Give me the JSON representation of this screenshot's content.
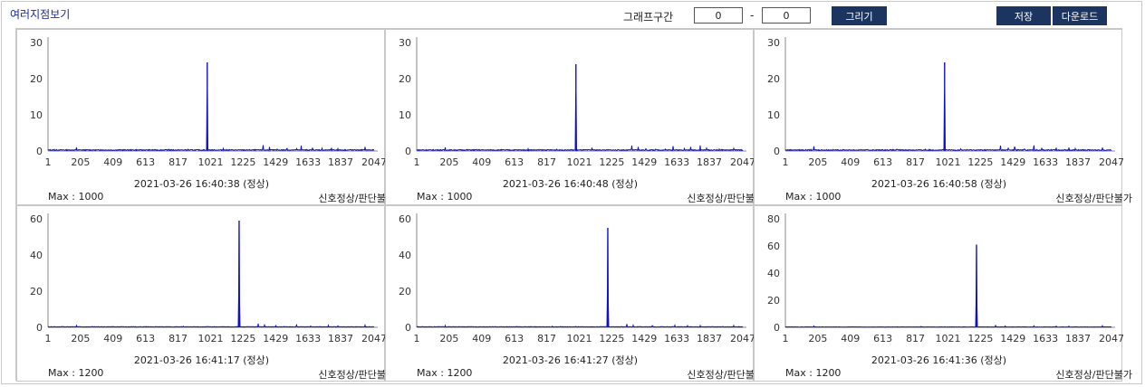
{
  "header": {
    "title": "여러지점보기",
    "range_label": "그래프구간",
    "range_from": "0",
    "range_sep": "-",
    "range_to": "0",
    "draw_button": "그리기",
    "save_button": "저장",
    "download_button": "다운로드"
  },
  "colors": {
    "line": "#1010cc",
    "button_bg": "#1c3560",
    "title": "#1a2a9a"
  },
  "chart_data": [
    {
      "type": "line",
      "timestamp": "2021-03-26 16:40:38 (정상)",
      "max_label": "Max : 1000",
      "status": "신호정상/판단불가",
      "x_ticks": [
        "1",
        "205",
        "409",
        "613",
        "817",
        "1021",
        "1225",
        "1429",
        "1633",
        "1837",
        "2047"
      ],
      "y_ticks": [
        "0",
        "10",
        "20",
        "30"
      ],
      "ylim": [
        0,
        30
      ],
      "xlim": [
        1,
        2047
      ],
      "peak": {
        "x": 1000,
        "y": 24.5
      },
      "minor_peaks": [
        [
          40,
          0.6
        ],
        [
          180,
          1.0
        ],
        [
          330,
          0.5
        ],
        [
          520,
          0.4
        ],
        [
          760,
          0.5
        ],
        [
          880,
          0.7
        ],
        [
          1100,
          0.9
        ],
        [
          1350,
          2.2
        ],
        [
          1390,
          1.4
        ],
        [
          1440,
          0.8
        ],
        [
          1500,
          1.3
        ],
        [
          1560,
          1.0
        ],
        [
          1590,
          1.8
        ],
        [
          1660,
          1.1
        ],
        [
          1720,
          0.8
        ],
        [
          1780,
          0.9
        ],
        [
          1820,
          0.7
        ],
        [
          1900,
          0.6
        ],
        [
          1990,
          1.2
        ]
      ]
    },
    {
      "type": "line",
      "timestamp": "2021-03-26 16:40:48 (정상)",
      "max_label": "Max : 1000",
      "status": "신호정상/판단불가",
      "x_ticks": [
        "1",
        "205",
        "409",
        "613",
        "817",
        "1021",
        "1225",
        "1429",
        "1633",
        "1837",
        "2047"
      ],
      "y_ticks": [
        "0",
        "10",
        "20",
        "30"
      ],
      "ylim": [
        0,
        30
      ],
      "xlim": [
        1,
        2047
      ],
      "peak": {
        "x": 1000,
        "y": 24
      },
      "minor_peaks": [
        [
          40,
          0.5
        ],
        [
          180,
          1.0
        ],
        [
          330,
          0.5
        ],
        [
          520,
          0.4
        ],
        [
          700,
          0.6
        ],
        [
          880,
          0.7
        ],
        [
          1100,
          1.2
        ],
        [
          1350,
          2.0
        ],
        [
          1390,
          1.4
        ],
        [
          1440,
          1.0
        ],
        [
          1500,
          0.9
        ],
        [
          1560,
          0.8
        ],
        [
          1610,
          1.7
        ],
        [
          1680,
          1.0
        ],
        [
          1720,
          1.2
        ],
        [
          1780,
          1.6
        ],
        [
          1820,
          0.9
        ],
        [
          1900,
          0.7
        ],
        [
          1990,
          0.8
        ]
      ]
    },
    {
      "type": "line",
      "timestamp": "2021-03-26 16:40:58 (정상)",
      "max_label": "Max : 1000",
      "status": "신호정상/판단불가",
      "x_ticks": [
        "1",
        "205",
        "409",
        "613",
        "817",
        "1021",
        "1225",
        "1429",
        "1633",
        "1837",
        "2047"
      ],
      "y_ticks": [
        "0",
        "10",
        "20",
        "30"
      ],
      "ylim": [
        0,
        30
      ],
      "xlim": [
        1,
        2047
      ],
      "peak": {
        "x": 1000,
        "y": 24.5
      },
      "minor_peaks": [
        [
          40,
          0.5
        ],
        [
          180,
          1.3
        ],
        [
          330,
          0.5
        ],
        [
          520,
          0.4
        ],
        [
          700,
          0.5
        ],
        [
          880,
          0.7
        ],
        [
          1100,
          0.8
        ],
        [
          1350,
          2.0
        ],
        [
          1400,
          1.3
        ],
        [
          1440,
          1.9
        ],
        [
          1500,
          1.0
        ],
        [
          1560,
          2.4
        ],
        [
          1610,
          1.1
        ],
        [
          1700,
          1.0
        ],
        [
          1780,
          1.0
        ],
        [
          1820,
          0.8
        ],
        [
          1900,
          0.6
        ],
        [
          1990,
          1.0
        ]
      ]
    },
    {
      "type": "line",
      "timestamp": "2021-03-26 16:41:17 (정상)",
      "max_label": "Max : 1200",
      "status": "신호정상/판단불가",
      "x_ticks": [
        "1",
        "205",
        "409",
        "613",
        "817",
        "1021",
        "1225",
        "1429",
        "1633",
        "1837",
        "2047"
      ],
      "y_ticks": [
        "0",
        "20",
        "40",
        "60"
      ],
      "ylim": [
        0,
        60
      ],
      "xlim": [
        1,
        2047
      ],
      "peak": {
        "x": 1200,
        "y": 59
      },
      "minor_peaks": [
        [
          40,
          0.6
        ],
        [
          180,
          1.0
        ],
        [
          400,
          0.6
        ],
        [
          650,
          0.6
        ],
        [
          850,
          0.8
        ],
        [
          1000,
          0.9
        ],
        [
          1320,
          2.4
        ],
        [
          1360,
          1.6
        ],
        [
          1430,
          1.0
        ],
        [
          1560,
          2.0
        ],
        [
          1650,
          1.0
        ],
        [
          1760,
          1.1
        ],
        [
          1820,
          0.9
        ],
        [
          1990,
          1.2
        ]
      ]
    },
    {
      "type": "line",
      "timestamp": "2021-03-26 16:41:27 (정상)",
      "max_label": "Max : 1200",
      "status": "신호정상/판단불가",
      "x_ticks": [
        "1",
        "205",
        "409",
        "613",
        "817",
        "1021",
        "1225",
        "1429",
        "1633",
        "1837",
        "2047"
      ],
      "y_ticks": [
        "0",
        "20",
        "40",
        "60"
      ],
      "ylim": [
        0,
        60
      ],
      "xlim": [
        1,
        2047
      ],
      "peak": {
        "x": 1200,
        "y": 55
      },
      "minor_peaks": [
        [
          40,
          0.6
        ],
        [
          180,
          1.0
        ],
        [
          400,
          0.6
        ],
        [
          650,
          0.6
        ],
        [
          850,
          0.8
        ],
        [
          1000,
          0.9
        ],
        [
          1320,
          2.2
        ],
        [
          1360,
          1.5
        ],
        [
          1480,
          1.6
        ],
        [
          1620,
          1.5
        ],
        [
          1700,
          1.0
        ],
        [
          1780,
          1.0
        ],
        [
          1990,
          1.0
        ]
      ]
    },
    {
      "type": "line",
      "timestamp": "2021-03-26 16:41:36 (정상)",
      "max_label": "Max : 1200",
      "status": "신호정상/판단불가",
      "x_ticks": [
        "1",
        "205",
        "409",
        "613",
        "817",
        "1021",
        "1225",
        "1429",
        "1633",
        "1837",
        "2047"
      ],
      "y_ticks": [
        "0",
        "20",
        "40",
        "60",
        "80"
      ],
      "ylim": [
        0,
        80
      ],
      "xlim": [
        1,
        2047
      ],
      "peak": {
        "x": 1200,
        "y": 61
      },
      "minor_peaks": [
        [
          40,
          0.6
        ],
        [
          180,
          1.0
        ],
        [
          400,
          0.6
        ],
        [
          650,
          0.6
        ],
        [
          850,
          0.8
        ],
        [
          1000,
          0.9
        ],
        [
          1320,
          2.0
        ],
        [
          1380,
          1.4
        ],
        [
          1560,
          1.8
        ],
        [
          1700,
          1.0
        ],
        [
          1780,
          0.9
        ],
        [
          1990,
          1.1
        ]
      ]
    }
  ]
}
